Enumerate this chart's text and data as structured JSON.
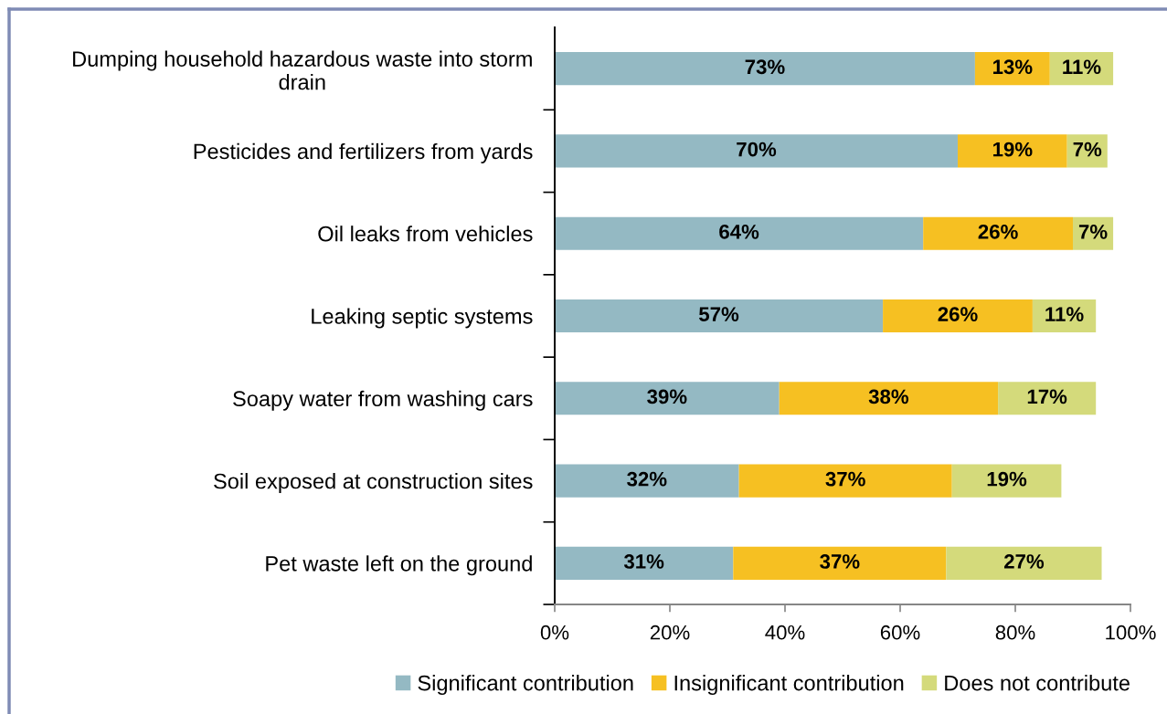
{
  "chart_data": {
    "type": "bar",
    "orientation": "horizontal",
    "stacked": true,
    "categories": [
      "Dumping household hazardous waste into storm\ndrain",
      "Pesticides and fertilizers from yards",
      "Oil leaks from vehicles",
      "Leaking septic systems",
      "Soapy water from washing cars",
      "Soil exposed at construction sites",
      "Pet waste left on the ground"
    ],
    "series": [
      {
        "name": "Significant contribution",
        "color": "#94b9c3",
        "values": [
          73,
          70,
          64,
          57,
          39,
          32,
          31
        ],
        "value_labels": [
          "73%",
          "70%",
          "64%",
          "57%",
          "39%",
          "32%",
          "31%"
        ]
      },
      {
        "name": "Insignificant contribution",
        "color": "#f6c022",
        "values": [
          13,
          19,
          26,
          26,
          38,
          37,
          37
        ],
        "value_labels": [
          "13%",
          "19%",
          "26%",
          "26%",
          "38%",
          "37%",
          "37%"
        ]
      },
      {
        "name": "Does not contribute",
        "color": "#d4da7b",
        "values": [
          11,
          7,
          7,
          11,
          17,
          19,
          27
        ],
        "value_labels": [
          "11%",
          "7%",
          "7%",
          "11%",
          "17%",
          "19%",
          "27%"
        ]
      }
    ],
    "xlim": [
      0,
      100
    ],
    "xticks": [
      {
        "value": 0,
        "label": "0%"
      },
      {
        "value": 20,
        "label": "20%"
      },
      {
        "value": 40,
        "label": "40%"
      },
      {
        "value": 60,
        "label": "60%"
      },
      {
        "value": 80,
        "label": "80%"
      },
      {
        "value": 100,
        "label": "100%"
      }
    ],
    "legend": "bottom",
    "grid": false
  }
}
